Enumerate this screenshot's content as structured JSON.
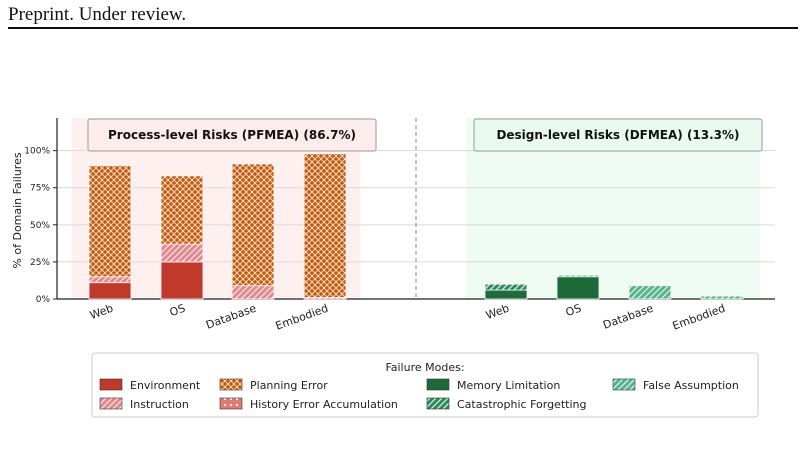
{
  "page": {
    "header": "Preprint. Under review.",
    "footer_fragment": ""
  },
  "chart_data": {
    "type": "bar",
    "stacked": true,
    "panels": [
      {
        "title": "Process-level Risks (PFMEA) (86.7%)",
        "categories": [
          "Web",
          "OS",
          "Database",
          "Embodied"
        ],
        "background": "#fff0f0",
        "title_bg": "#fdecec"
      },
      {
        "title": "Design-level Risks (DFMEA) (13.3%)",
        "categories": [
          "Web",
          "OS",
          "Database",
          "Embodied"
        ],
        "background": "#effcf4",
        "title_bg": "#e9faf0"
      }
    ],
    "ylabel": "% of Domain Failures",
    "yticks": [
      "0%",
      "25%",
      "50%",
      "75%",
      "100%"
    ],
    "ylim": [
      0,
      122
    ],
    "grid": true,
    "legend": {
      "title": "Failure Modes:",
      "position": "bottom",
      "entries": [
        {
          "name": "Environment",
          "color": "#c0392b",
          "pattern": "solid"
        },
        {
          "name": "Instruction",
          "color": "#e8858a",
          "pattern": "diag"
        },
        {
          "name": "Planning Error",
          "color": "#d35400",
          "pattern": "cross"
        },
        {
          "name": "History Error Accumulation",
          "color": "#e07b73",
          "pattern": "dots"
        },
        {
          "name": "Memory Limitation",
          "color": "#1e6b3a",
          "pattern": "solid"
        },
        {
          "name": "Catastrophic Forgetting",
          "color": "#2e8b57",
          "pattern": "diag"
        },
        {
          "name": "False Assumption",
          "color": "#52b788",
          "pattern": "diag"
        }
      ]
    },
    "series": [
      {
        "name": "Environment",
        "panel": 0,
        "values": [
          11,
          25,
          0,
          0
        ]
      },
      {
        "name": "Instruction",
        "panel": 0,
        "values": [
          4,
          12,
          9,
          1
        ]
      },
      {
        "name": "Planning Error",
        "panel": 0,
        "values": [
          75,
          46,
          82,
          97
        ]
      },
      {
        "name": "History Error Accumulation",
        "panel": 0,
        "values": [
          0,
          0,
          0,
          0
        ]
      },
      {
        "name": "Memory Limitation",
        "panel": 1,
        "values": [
          6,
          15,
          0,
          0
        ]
      },
      {
        "name": "Catastrophic Forgetting",
        "panel": 1,
        "values": [
          4,
          1,
          0,
          0
        ]
      },
      {
        "name": "False Assumption",
        "panel": 1,
        "values": [
          0,
          0,
          9,
          2
        ]
      }
    ],
    "colors": {
      "grid": "#d9d9d9",
      "axis": "#222222",
      "divider": "#888888"
    }
  }
}
